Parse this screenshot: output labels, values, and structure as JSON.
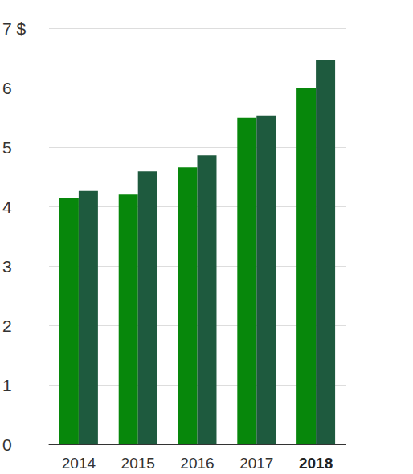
{
  "chart_data": {
    "type": "bar",
    "categories": [
      "2014",
      "2015",
      "2016",
      "2017",
      "2018"
    ],
    "series": [
      {
        "color": "#07870b",
        "values": [
          4.14,
          4.2,
          4.66,
          5.49,
          6.0
        ]
      },
      {
        "color": "#1e5a3e",
        "values": [
          4.26,
          4.59,
          4.86,
          5.53,
          6.46
        ]
      }
    ],
    "ylim": [
      0,
      7
    ],
    "yticks": [
      0,
      1,
      2,
      3,
      4,
      5,
      6,
      {
        "value": 7,
        "label": "7 $"
      }
    ],
    "grid": true
  }
}
